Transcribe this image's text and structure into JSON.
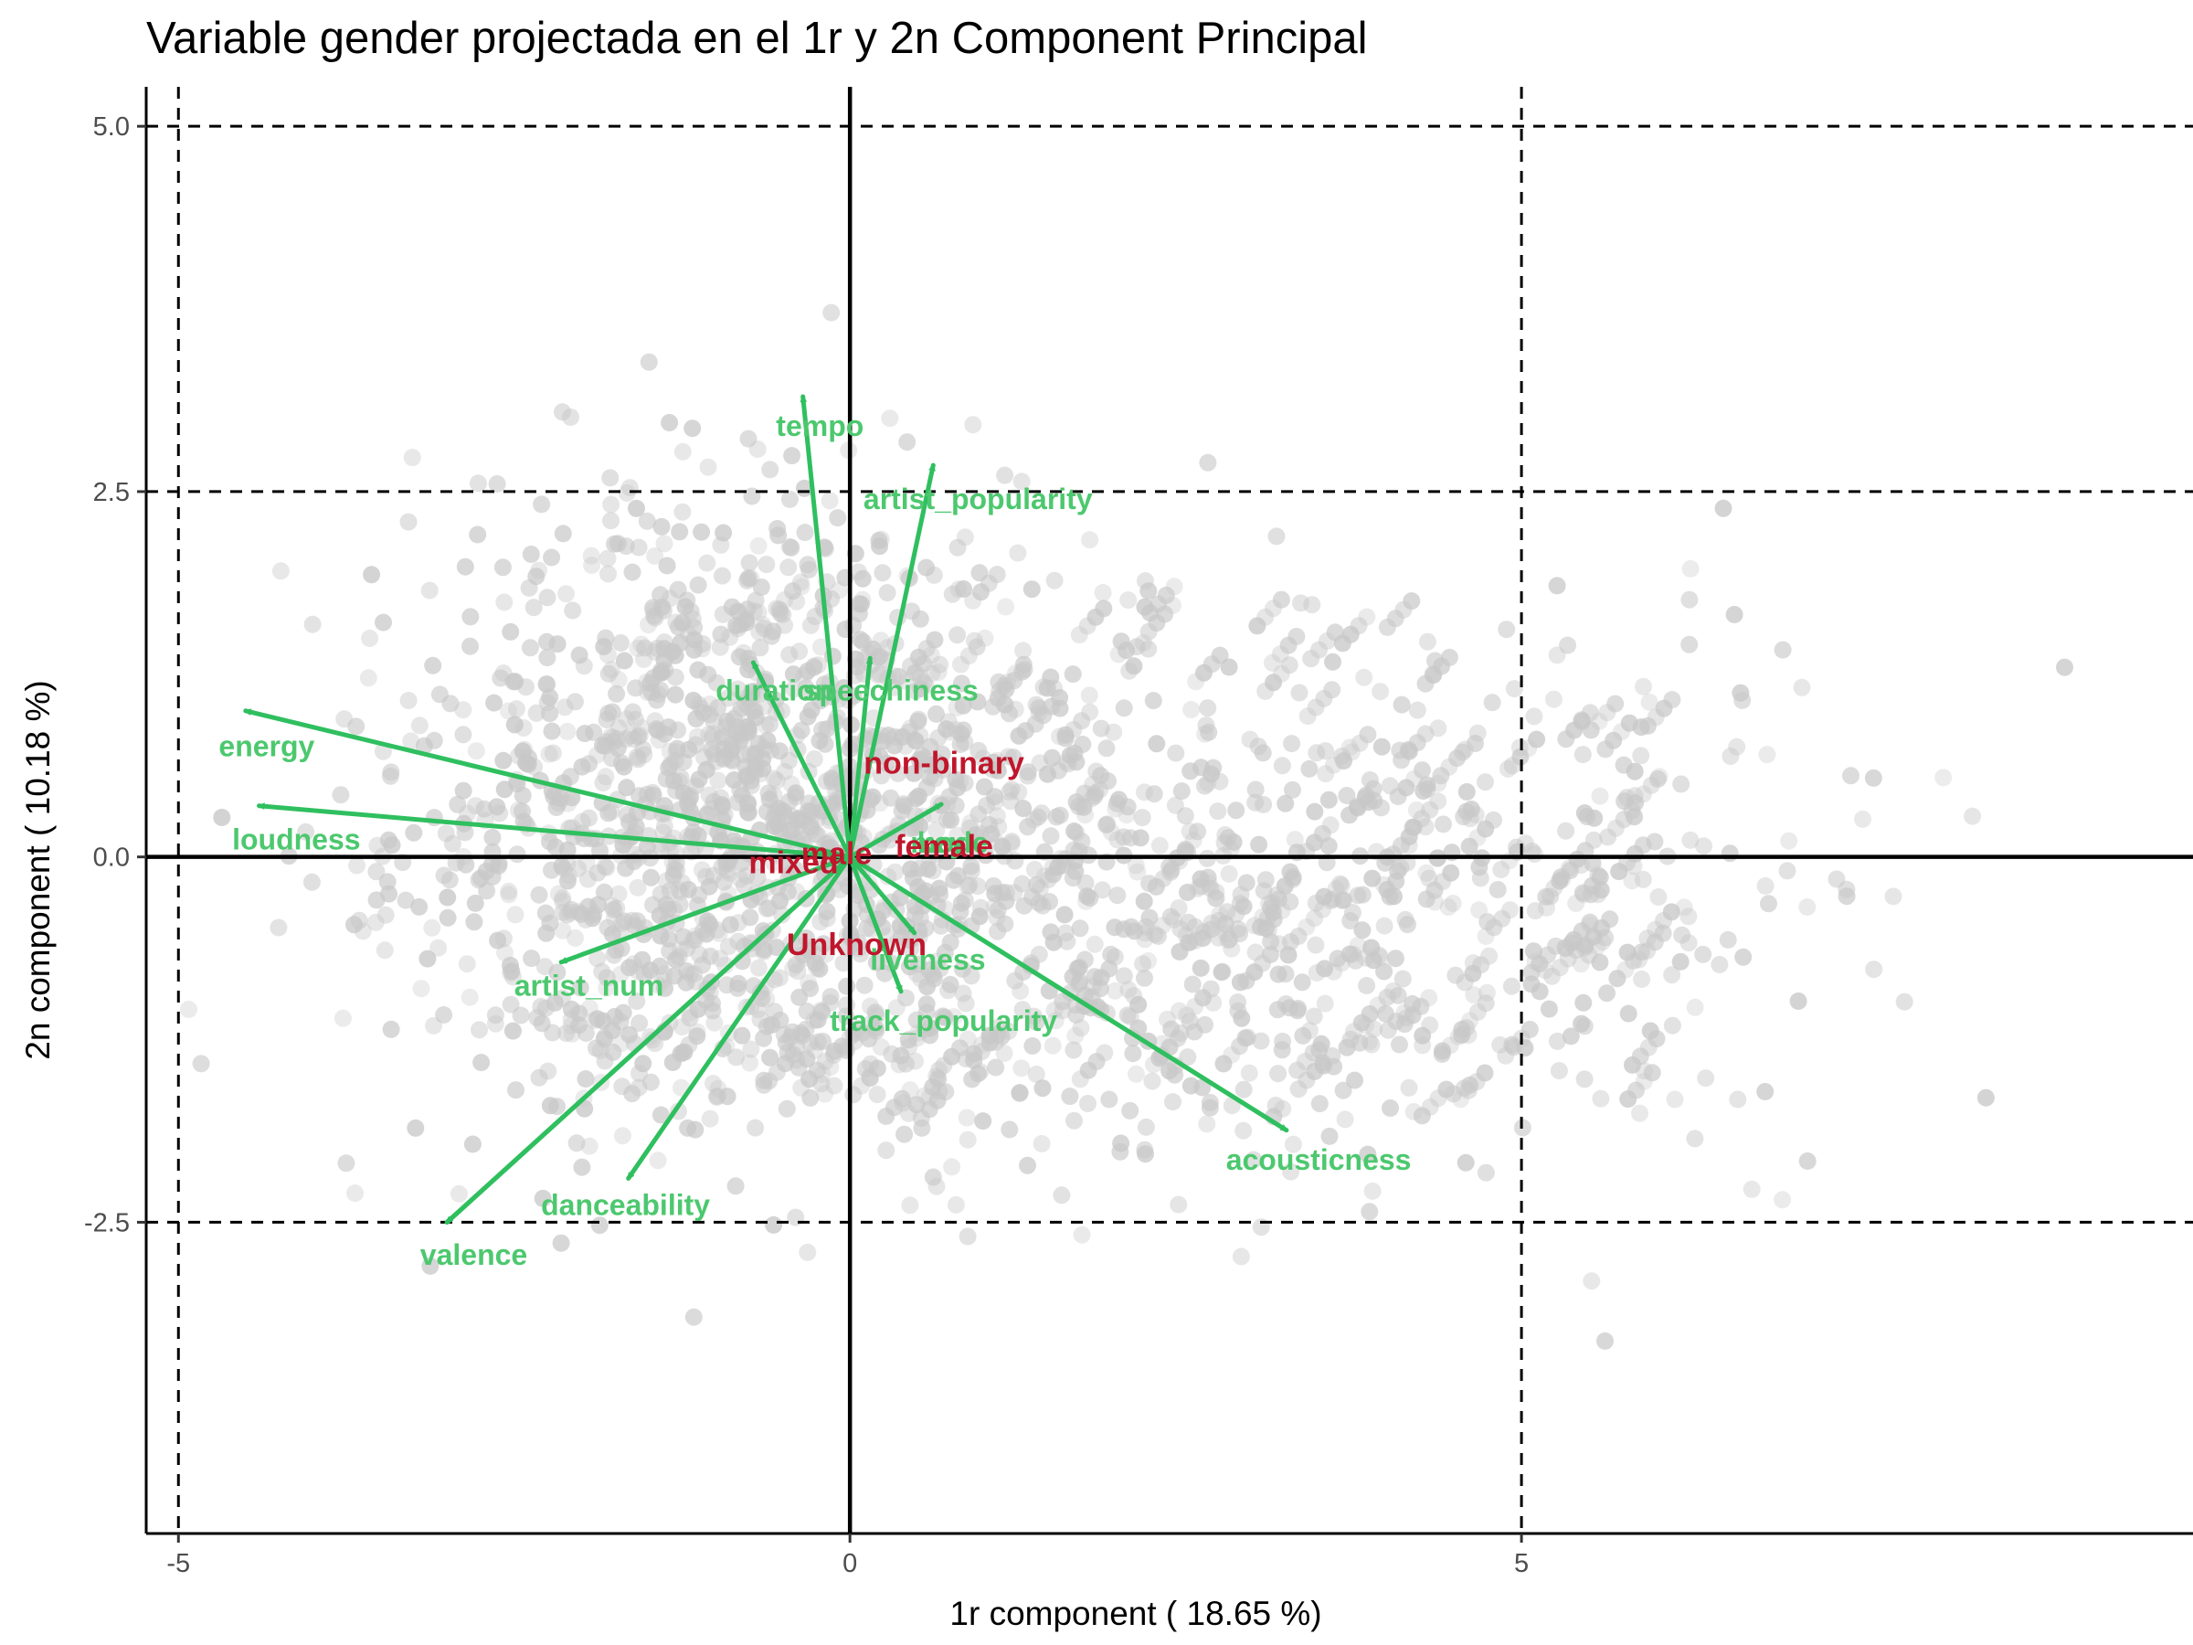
{
  "chart_data": {
    "type": "scatter",
    "title": "Variable gender projectada en el 1r y 2n Component Principal",
    "xlabel": "1r component ( 18.65 %)",
    "ylabel": "2n component ( 10.18 %)",
    "xlim": [
      -5.24,
      10.0
    ],
    "ylim": [
      -4.63,
      5.27
    ],
    "x_ticks": [
      -5,
      0,
      5
    ],
    "x_tick_labels": [
      "-5",
      "0",
      "5"
    ],
    "y_ticks": [
      -2.5,
      0,
      2.5,
      5
    ],
    "y_tick_labels": [
      "-2.5",
      "0.0",
      "2.5",
      "5.0"
    ],
    "reference_lines": {
      "dashed_x": [
        -5,
        5
      ],
      "dashed_y": [
        -2.5,
        2.5,
        5
      ],
      "solid_x": [
        0
      ],
      "solid_y": [
        0
      ]
    },
    "grid": false,
    "colors": {
      "points": "#c8c8c8",
      "arrows": "#2fbf5f",
      "variable_labels": "#4cc86e",
      "category_labels": "#c0162c"
    },
    "variables": [
      {
        "name": "energy",
        "x": -4.5,
        "y": 1.0,
        "label_x": -4.7,
        "label_y": 0.69
      },
      {
        "name": "loudness",
        "x": -4.4,
        "y": 0.35,
        "label_x": -4.6,
        "label_y": 0.05
      },
      {
        "name": "tempo",
        "x": -0.35,
        "y": 3.15,
        "label_x": -0.55,
        "label_y": 2.88
      },
      {
        "name": "artist_popularity",
        "x": 0.62,
        "y": 2.68,
        "label_x": 0.1,
        "label_y": 2.38
      },
      {
        "name": "duration",
        "x": -0.72,
        "y": 1.33,
        "label_x": -1.0,
        "label_y": 1.07
      },
      {
        "name": "speechiness",
        "x": 0.15,
        "y": 1.36,
        "label_x": -0.35,
        "label_y": 1.07
      },
      {
        "name": "artist_num",
        "x": -2.15,
        "y": -0.72,
        "label_x": -2.5,
        "label_y": -0.95
      },
      {
        "name": "track_popularity",
        "x": -1.65,
        "y": -2.2,
        "label_x": -0.15,
        "label_y": -1.19
      },
      {
        "name": "danceability",
        "x": -3.0,
        "y": -2.5,
        "label_x": -2.3,
        "label_y": -2.45
      },
      {
        "name": "valence",
        "x": -3.0,
        "y": -2.5,
        "label_x": -3.2,
        "label_y": -2.79
      },
      {
        "name": "acousticness",
        "x": 3.25,
        "y": -1.87,
        "label_x": 2.8,
        "label_y": -2.14
      },
      {
        "name": "liveness",
        "x": 0.38,
        "y": -0.92,
        "label_x": 0.15,
        "label_y": -0.77
      },
      {
        "name": "mode",
        "x": 0.48,
        "y": -0.52,
        "label_x": 0.45,
        "label_y": 0.03
      },
      {
        "name": "key",
        "x": 0.68,
        "y": 0.36,
        "label_x": 0.5,
        "label_y": 0.03
      }
    ],
    "categories": [
      {
        "name": "non-binary",
        "x": 0.7,
        "y": 0.57
      },
      {
        "name": "female",
        "x": 0.7,
        "y": 0.0
      },
      {
        "name": "male",
        "x": -0.1,
        "y": -0.05
      },
      {
        "name": "mixed",
        "x": -0.42,
        "y": -0.11
      },
      {
        "name": "Unknown",
        "x": 0.05,
        "y": -0.67
      }
    ]
  }
}
